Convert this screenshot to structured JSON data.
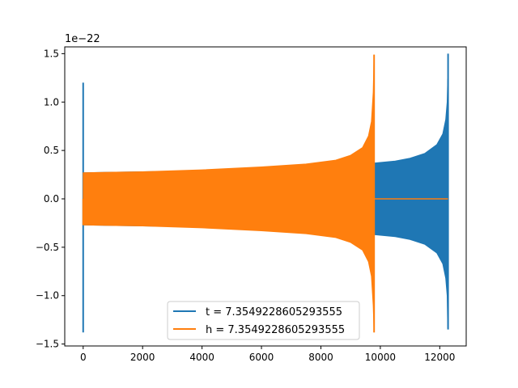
{
  "chart_data": {
    "type": "line",
    "title": "",
    "xlabel": "",
    "ylabel": "",
    "x_range": [
      -620,
      12890
    ],
    "y_range": [
      -1.52,
      1.57
    ],
    "y_offset_label": "1e−22",
    "x_ticks": [
      {
        "value": 0,
        "label": "0"
      },
      {
        "value": 2000,
        "label": "2000"
      },
      {
        "value": 4000,
        "label": "4000"
      },
      {
        "value": 6000,
        "label": "6000"
      },
      {
        "value": 8000,
        "label": "8000"
      },
      {
        "value": 10000,
        "label": "10000"
      },
      {
        "value": 12000,
        "label": "12000"
      }
    ],
    "y_ticks": [
      {
        "value": 1.5,
        "label": "1.5"
      },
      {
        "value": 1.0,
        "label": "1.0"
      },
      {
        "value": 0.5,
        "label": "0.5"
      },
      {
        "value": 0.0,
        "label": "0.0"
      },
      {
        "value": -0.5,
        "label": "−0.5"
      },
      {
        "value": -1.0,
        "label": "−1.0"
      },
      {
        "value": -1.5,
        "label": "−1.5"
      }
    ],
    "grid": false,
    "legend_position": "lower-center",
    "series": [
      {
        "name": "t = 7.3549228605293555",
        "color": "#1f77b4",
        "spike": {
          "x": 0,
          "top": 1.2,
          "bottom": -1.38
        },
        "envelope": {
          "x_start": 0,
          "x_end": 12280,
          "upper": [
            [
              0,
              0.27
            ],
            [
              2000,
              0.28
            ],
            [
              4000,
              0.29
            ],
            [
              6000,
              0.31
            ],
            [
              8000,
              0.34
            ],
            [
              9790,
              0.37
            ],
            [
              10500,
              0.39
            ],
            [
              11000,
              0.42
            ],
            [
              11500,
              0.47
            ],
            [
              11900,
              0.56
            ],
            [
              12100,
              0.67
            ],
            [
              12200,
              0.82
            ],
            [
              12250,
              1.0
            ],
            [
              12270,
              1.24
            ]
          ],
          "lower": [
            [
              0,
              -0.27
            ],
            [
              2000,
              -0.28
            ],
            [
              4000,
              -0.29
            ],
            [
              6000,
              -0.31
            ],
            [
              8000,
              -0.34
            ],
            [
              9790,
              -0.37
            ],
            [
              10500,
              -0.39
            ],
            [
              11000,
              -0.42
            ],
            [
              11500,
              -0.47
            ],
            [
              11900,
              -0.56
            ],
            [
              12100,
              -0.67
            ],
            [
              12200,
              -0.82
            ],
            [
              12250,
              -1.0
            ],
            [
              12270,
              -1.34
            ]
          ]
        },
        "peak": {
          "x": 12280,
          "top": 1.5,
          "bottom": -1.35
        }
      },
      {
        "name": "h = 7.3549228605293555",
        "color": "#ff7f0e",
        "spike": {
          "x": 0,
          "top": 0.0,
          "bottom": -0.27
        },
        "envelope": {
          "x_start": 0,
          "x_end": 9790,
          "upper": [
            [
              0,
              0.27
            ],
            [
              2000,
              0.28
            ],
            [
              4000,
              0.3
            ],
            [
              6000,
              0.33
            ],
            [
              7500,
              0.36
            ],
            [
              8500,
              0.4
            ],
            [
              9000,
              0.45
            ],
            [
              9400,
              0.53
            ],
            [
              9600,
              0.65
            ],
            [
              9700,
              0.8
            ],
            [
              9760,
              1.1
            ],
            [
              9790,
              1.49
            ]
          ],
          "lower": [
            [
              0,
              -0.27
            ],
            [
              2000,
              -0.28
            ],
            [
              4000,
              -0.3
            ],
            [
              6000,
              -0.33
            ],
            [
              7500,
              -0.36
            ],
            [
              8500,
              -0.4
            ],
            [
              9000,
              -0.45
            ],
            [
              9400,
              -0.53
            ],
            [
              9600,
              -0.65
            ],
            [
              9700,
              -0.8
            ],
            [
              9760,
              -1.1
            ],
            [
              9790,
              -1.38
            ]
          ]
        },
        "tail": {
          "x_start": 9790,
          "x_end": 12280,
          "y": 0.0
        }
      }
    ]
  }
}
